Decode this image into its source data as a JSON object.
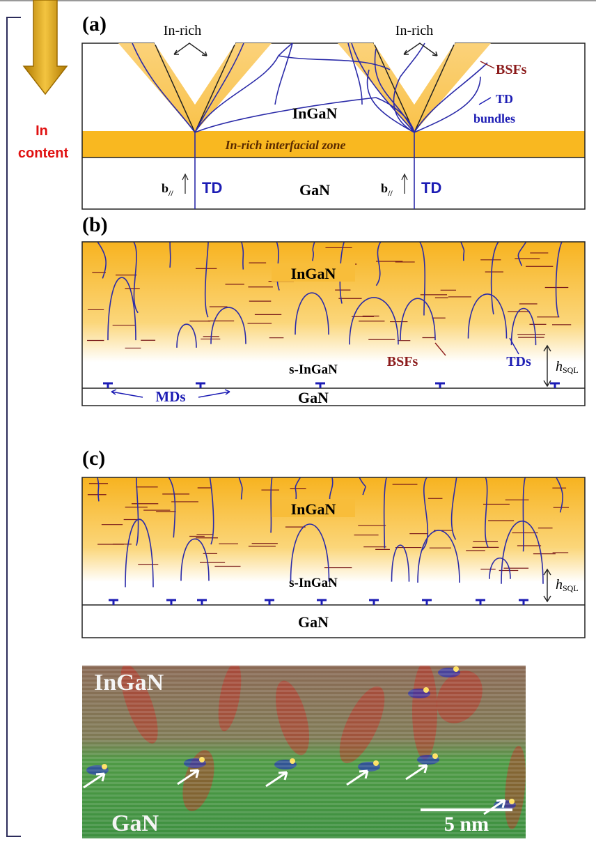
{
  "indicator": {
    "line1": "In",
    "line2": "content"
  },
  "panel_a": {
    "label": "(a)",
    "in_rich_left": "In-rich",
    "in_rich_right": "In-rich",
    "bsfs": "BSFs",
    "td_bundles_1": "TD",
    "td_bundles_2": "bundles",
    "layer_top": "InGaN",
    "zone": "In-rich interfacial zone",
    "burgers_left": {
      "symbol": "b",
      "subscript": "//"
    },
    "burgers_right": {
      "symbol": "b",
      "subscript": "//"
    },
    "td_left": "TD",
    "td_right": "TD",
    "layer_bottom": "GaN"
  },
  "panel_b": {
    "label": "(b)",
    "layer_top": "InGaN",
    "layer_mid": "s-InGaN",
    "layer_bottom": "GaN",
    "mds": "MDs",
    "bsfs": "BSFs",
    "tds": "TDs",
    "height": {
      "symbol": "h",
      "subscript": "SQL"
    }
  },
  "panel_c": {
    "label": "(c)",
    "layer_top": "InGaN",
    "layer_mid": "s-InGaN",
    "layer_bottom": "GaN",
    "height": {
      "symbol": "h",
      "subscript": "SQL"
    }
  },
  "micrograph": {
    "layer_top": "InGaN",
    "layer_bottom": "GaN",
    "scale": "5 nm"
  }
}
